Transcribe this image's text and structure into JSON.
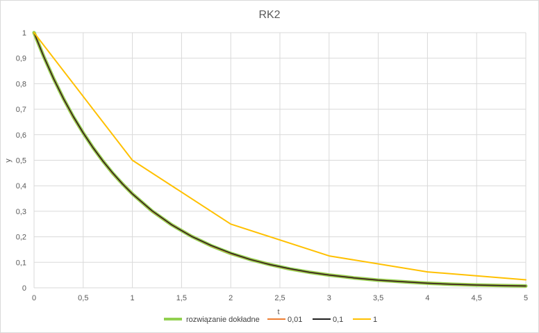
{
  "chart_data": {
    "type": "line",
    "title": "RK2",
    "xlabel": "t",
    "ylabel": "y",
    "xlim": [
      0,
      5
    ],
    "ylim": [
      0,
      1
    ],
    "x_ticks": [
      "0",
      "0,5",
      "1",
      "1,5",
      "2",
      "2,5",
      "3",
      "3,5",
      "4",
      "4,5",
      "5"
    ],
    "y_ticks": [
      "0",
      "0,1",
      "0,2",
      "0,3",
      "0,4",
      "0,5",
      "0,6",
      "0,7",
      "0,8",
      "0,9",
      "1"
    ],
    "grid": "vertical and horizontal",
    "legend_position": "bottom",
    "series": [
      {
        "name": "rozwiązanie dokładne",
        "color": "#92d050",
        "x": [
          0,
          0.1,
          0.2,
          0.3,
          0.4,
          0.5,
          0.6,
          0.7,
          0.8,
          0.9,
          1.0,
          1.2,
          1.4,
          1.6,
          1.8,
          2.0,
          2.2,
          2.4,
          2.6,
          2.8,
          3.0,
          3.25,
          3.5,
          3.75,
          4.0,
          4.25,
          4.5,
          4.75,
          5.0
        ],
        "y": [
          1,
          0.905,
          0.819,
          0.741,
          0.67,
          0.607,
          0.549,
          0.497,
          0.449,
          0.407,
          0.368,
          0.301,
          0.247,
          0.202,
          0.165,
          0.135,
          0.111,
          0.091,
          0.074,
          0.061,
          0.05,
          0.039,
          0.03,
          0.024,
          0.018,
          0.014,
          0.011,
          0.009,
          0.007
        ]
      },
      {
        "name": "0,01",
        "color": "#ed7d31",
        "x": [
          0,
          0.1,
          0.2,
          0.3,
          0.4,
          0.5,
          0.6,
          0.7,
          0.8,
          0.9,
          1.0,
          1.2,
          1.4,
          1.6,
          1.8,
          2.0,
          2.2,
          2.4,
          2.6,
          2.8,
          3.0,
          3.25,
          3.5,
          3.75,
          4.0,
          4.25,
          4.5,
          4.75,
          5.0
        ],
        "y": [
          1,
          0.905,
          0.819,
          0.741,
          0.67,
          0.607,
          0.549,
          0.497,
          0.449,
          0.407,
          0.368,
          0.301,
          0.247,
          0.202,
          0.165,
          0.135,
          0.111,
          0.091,
          0.074,
          0.061,
          0.05,
          0.039,
          0.03,
          0.024,
          0.018,
          0.014,
          0.011,
          0.009,
          0.007
        ]
      },
      {
        "name": "0,1",
        "color": "#1f1f1f",
        "x": [
          0,
          0.1,
          0.2,
          0.3,
          0.4,
          0.5,
          0.6,
          0.7,
          0.8,
          0.9,
          1.0,
          1.2,
          1.4,
          1.6,
          1.8,
          2.0,
          2.2,
          2.4,
          2.6,
          2.8,
          3.0,
          3.25,
          3.5,
          3.75,
          4.0,
          4.25,
          4.5,
          4.75,
          5.0
        ],
        "y": [
          1,
          0.905,
          0.819,
          0.741,
          0.671,
          0.607,
          0.549,
          0.497,
          0.45,
          0.407,
          0.368,
          0.302,
          0.247,
          0.202,
          0.166,
          0.136,
          0.111,
          0.091,
          0.075,
          0.061,
          0.05,
          0.039,
          0.03,
          0.024,
          0.018,
          0.014,
          0.011,
          0.009,
          0.007
        ]
      },
      {
        "name": "1",
        "color": "#ffc000",
        "x": [
          0,
          1,
          2,
          3,
          4,
          5
        ],
        "y": [
          1,
          0.5,
          0.25,
          0.125,
          0.0625,
          0.03125
        ]
      }
    ]
  }
}
